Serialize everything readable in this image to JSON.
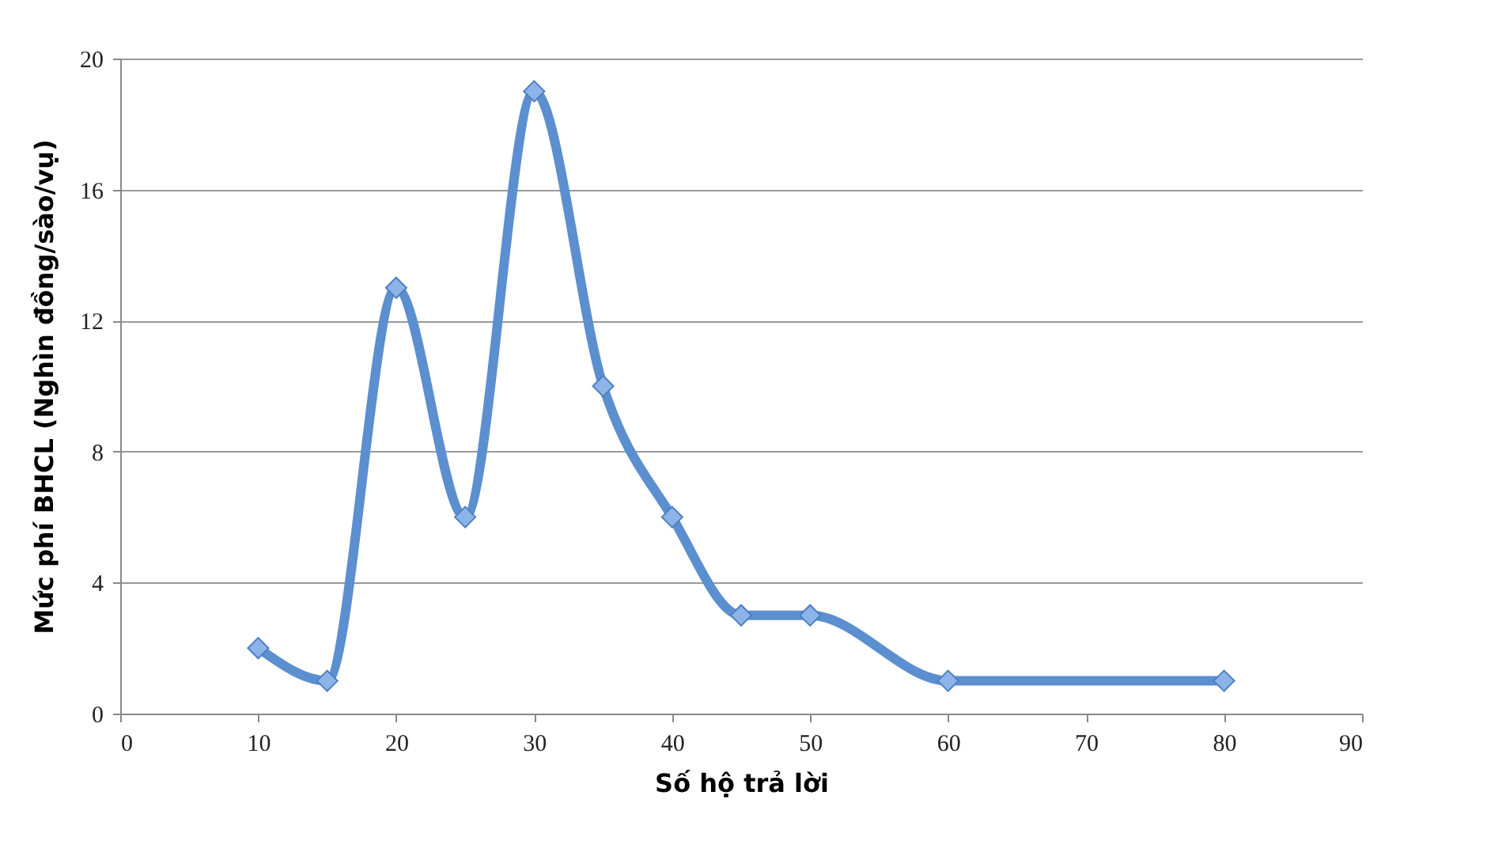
{
  "chart_data": {
    "type": "line",
    "xlabel": "Số hộ trả lời",
    "ylabel": "Mức phí BHCL (Nghìn đồng/sào/vụ)",
    "x": [
      10,
      15,
      20,
      25,
      30,
      35,
      40,
      45,
      50,
      60,
      80
    ],
    "series": [
      {
        "color": "#5b8fd0",
        "values": [
          2,
          1,
          13,
          6,
          19,
          10,
          6,
          3,
          3,
          1,
          1
        ]
      }
    ],
    "xlim": [
      0,
      90
    ],
    "xticks": [
      0,
      10,
      20,
      30,
      40,
      50,
      60,
      70,
      80,
      90
    ],
    "ylim": [
      0,
      20
    ],
    "yticks": [
      0,
      4,
      8,
      12,
      16,
      20
    ],
    "grid": "y",
    "marker": "diamond",
    "line_style": "solid"
  }
}
